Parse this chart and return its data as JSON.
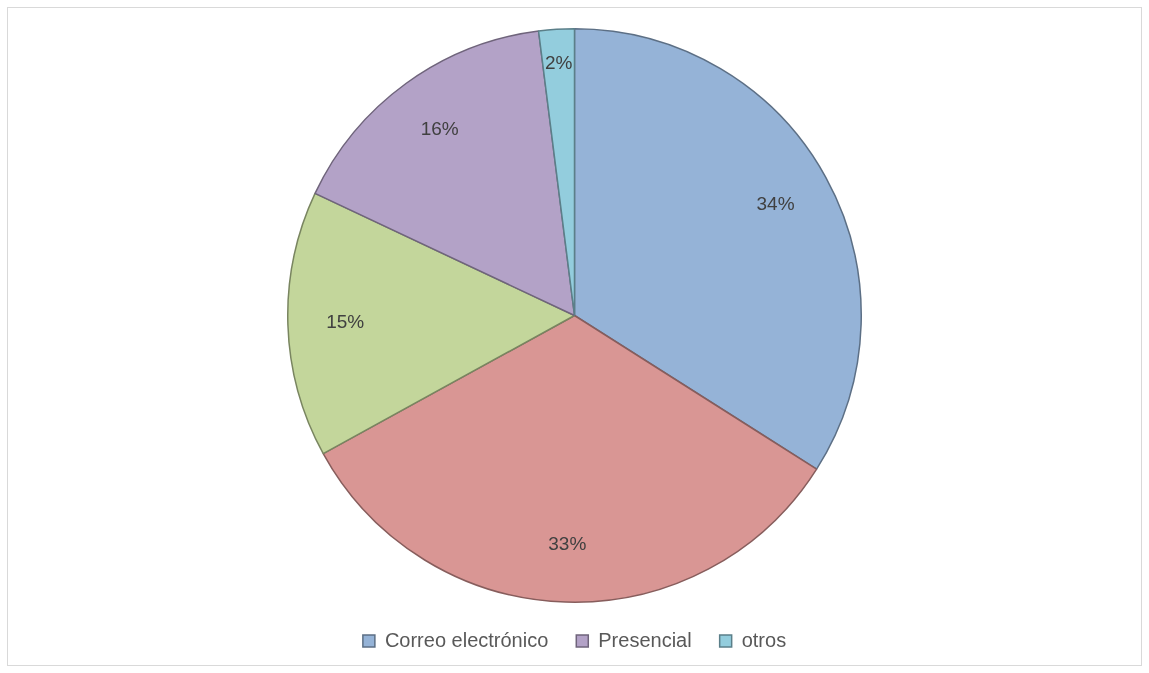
{
  "chart_data": {
    "type": "pie",
    "categories": [
      "Correo electrónico",
      null,
      null,
      "Presencial",
      "otros"
    ],
    "values": [
      34,
      33,
      15,
      16,
      2
    ],
    "colors": [
      "#95b3d7",
      "#d99694",
      "#c3d69b",
      "#b3a2c7",
      "#93cddd"
    ],
    "value_labels": [
      "34%",
      "33%",
      "15%",
      "16%",
      "2%"
    ],
    "legend": "bottom"
  }
}
